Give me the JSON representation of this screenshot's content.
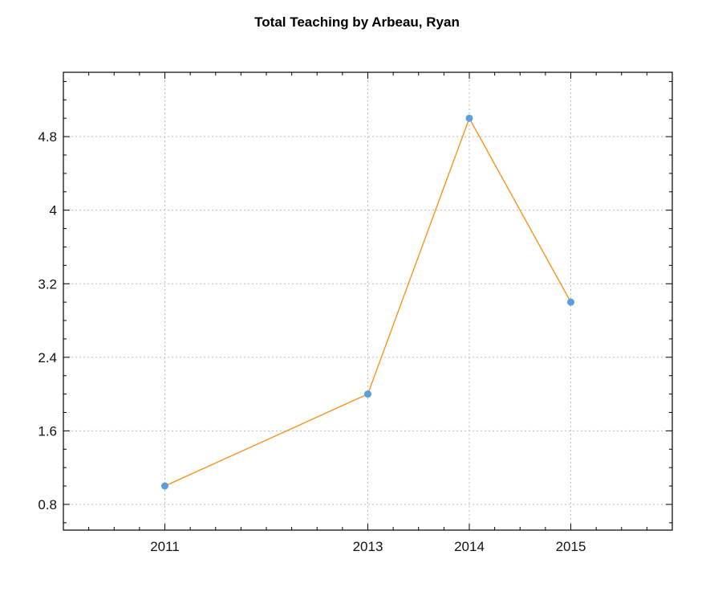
{
  "chart_data": {
    "type": "line",
    "title": "Total Teaching by Arbeau, Ryan",
    "xlabel": "",
    "ylabel": "",
    "categories": [
      "2011",
      "2013",
      "2014",
      "2015"
    ],
    "x": [
      2011,
      2013,
      2014,
      2015
    ],
    "xlim": [
      2010,
      2016
    ],
    "ylim": [
      0.52,
      5.5
    ],
    "yticks": [
      0.8,
      1.6,
      2.4,
      3.2,
      4,
      4.8
    ],
    "ytick_labels": [
      "0.8",
      "1.6",
      "2.4",
      "3.2",
      "4",
      "4.8"
    ],
    "series": [
      {
        "values": [
          1,
          2,
          5,
          3
        ]
      }
    ],
    "grid": true,
    "line_color": "#f7931e",
    "marker_color": "#5b9fdc"
  }
}
